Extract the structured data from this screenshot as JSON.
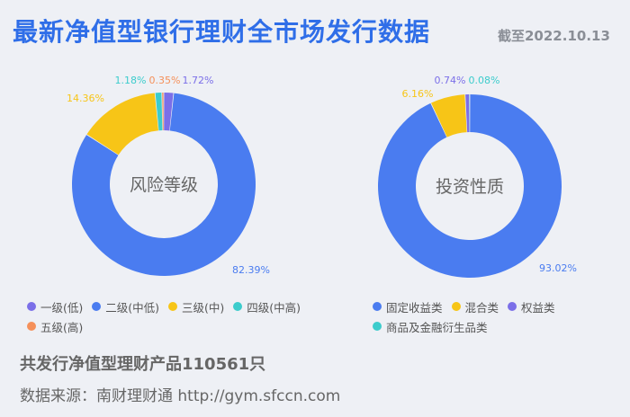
{
  "header": {
    "title": "最新净值型银行理财全市场发行数据",
    "date": "截至2022.10.13"
  },
  "chart_data": [
    {
      "type": "pie",
      "donut": true,
      "center_label": "风险等级",
      "categories": [
        "一级(低)",
        "二级(中低)",
        "三级(中)",
        "四级(中高)",
        "五级(高)"
      ],
      "values": [
        1.72,
        82.39,
        14.36,
        1.18,
        0.35
      ],
      "value_labels": [
        "1.72%",
        "82.39%",
        "14.36%",
        "1.18%",
        "0.35%"
      ],
      "colors": [
        "#7b6fe8",
        "#4a7cf0",
        "#f7c517",
        "#3ccccc",
        "#f5905a"
      ],
      "legend_position": "bottom"
    },
    {
      "type": "pie",
      "donut": true,
      "center_label": "投资性质",
      "categories": [
        "固定收益类",
        "混合类",
        "权益类",
        "商品及金融衍生品类"
      ],
      "values": [
        93.02,
        6.16,
        0.74,
        0.08
      ],
      "value_labels": [
        "93.02%",
        "6.16%",
        "0.74%",
        "0.08%"
      ],
      "colors": [
        "#4a7cf0",
        "#f7c517",
        "#7b6fe8",
        "#3ccccc"
      ],
      "legend_position": "bottom"
    }
  ],
  "footer": {
    "summary": "共发行净值型理财产品110561只",
    "source": "数据来源：南财理财通 http://gym.sfccn.com"
  }
}
